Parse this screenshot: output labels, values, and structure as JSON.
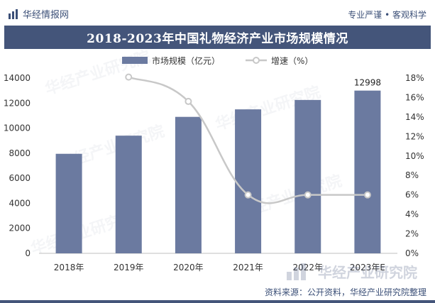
{
  "header": {
    "brand": "华经情报网",
    "slogan": "专业严谨 • 客观科学"
  },
  "title": "2018-2023年中国礼物经济产业市场规模情况",
  "legend": {
    "bar": "市场规模（亿元）",
    "line": "增速（%）"
  },
  "watermark": {
    "text": "华经产业研究院",
    "url": "www.huaon.com"
  },
  "footer": "资料来源：公开资料，华经产业研究院整理",
  "colors": {
    "bar": "#6b7aa0",
    "line": "#c8c8c8",
    "header": "#44557a"
  },
  "chart_data": {
    "type": "bar",
    "categories": [
      "2018年",
      "2019年",
      "2020年",
      "2021年",
      "2022年",
      "2023年E"
    ],
    "series": [
      {
        "name": "市场规模（亿元）",
        "type": "bar",
        "axis": "left",
        "values": [
          7950,
          9400,
          10900,
          11500,
          12250,
          12998
        ]
      },
      {
        "name": "增速（%）",
        "type": "line",
        "axis": "right",
        "values": [
          null,
          18.1,
          15.6,
          6.0,
          6.0,
          6.0
        ]
      }
    ],
    "data_labels": [
      {
        "category": "2023年E",
        "series": "市场规模（亿元）",
        "text": "12998"
      }
    ],
    "y_left": {
      "range": [
        0,
        14000
      ],
      "ticks": [
        "0",
        "2000",
        "4000",
        "6000",
        "8000",
        "10000",
        "12000",
        "14000"
      ]
    },
    "y_right": {
      "range": [
        0,
        18
      ],
      "ticks": [
        "0%",
        "2%",
        "4%",
        "6%",
        "8%",
        "10%",
        "12%",
        "14%",
        "16%",
        "18%"
      ]
    },
    "legend_position": "top",
    "grid": false
  }
}
